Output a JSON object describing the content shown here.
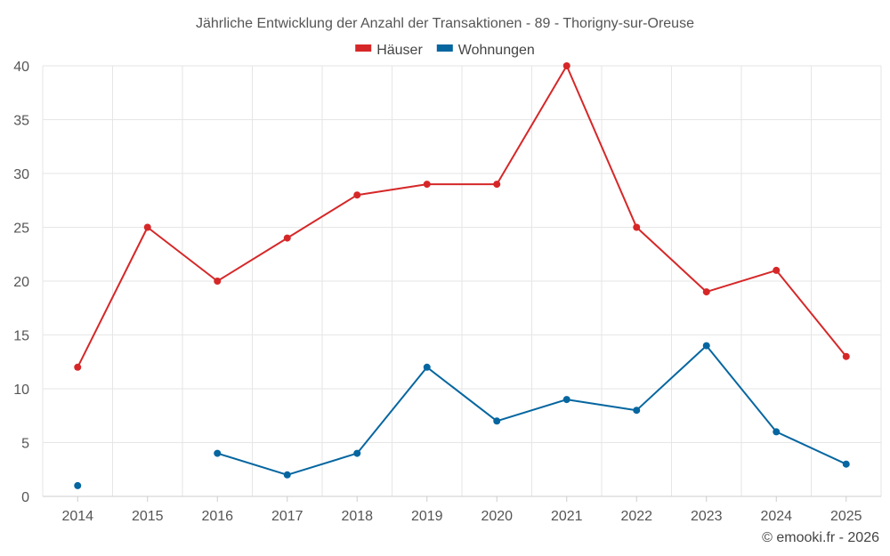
{
  "chart_data": {
    "type": "line",
    "title": "Jährliche Entwicklung der Anzahl der Transaktionen - 89 - Thorigny-sur-Oreuse",
    "categories": [
      "2014",
      "2015",
      "2016",
      "2017",
      "2018",
      "2019",
      "2020",
      "2021",
      "2022",
      "2023",
      "2024",
      "2025"
    ],
    "series": [
      {
        "name": "Häuser",
        "color": "#d62728",
        "values": [
          12,
          25,
          20,
          24,
          28,
          29,
          29,
          40,
          25,
          19,
          21,
          13
        ]
      },
      {
        "name": "Wohnungen",
        "color": "#0566a0",
        "values": [
          1,
          null,
          4,
          2,
          4,
          12,
          7,
          9,
          8,
          14,
          6,
          3
        ]
      }
    ],
    "ylim": [
      0,
      40
    ],
    "yticks": [
      0,
      5,
      10,
      15,
      20,
      25,
      30,
      35,
      40
    ],
    "grid": true,
    "legend": "top-center",
    "xlabel": "",
    "ylabel": ""
  },
  "credit": "© emooki.fr - 2026"
}
